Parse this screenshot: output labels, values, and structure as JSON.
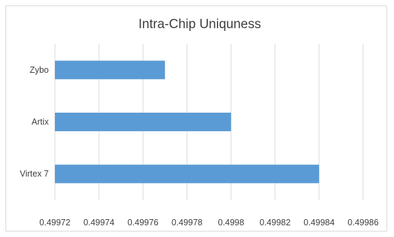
{
  "chart_data": {
    "type": "bar",
    "orientation": "horizontal",
    "title": "Intra-Chip Uniquness",
    "categories": [
      "Zybo",
      "Artix",
      "Virtex 7"
    ],
    "values": [
      0.49977,
      0.4998,
      0.49984
    ],
    "xlim": [
      0.49972,
      0.49986
    ],
    "xticks": [
      "0.49972",
      "0.49974",
      "0.49976",
      "0.49978",
      "0.4998",
      "0.49982",
      "0.49984",
      "0.49986"
    ],
    "xlabel": "",
    "ylabel": "",
    "grid": true,
    "legend": "none",
    "bar_color": "#5b9bd5"
  }
}
